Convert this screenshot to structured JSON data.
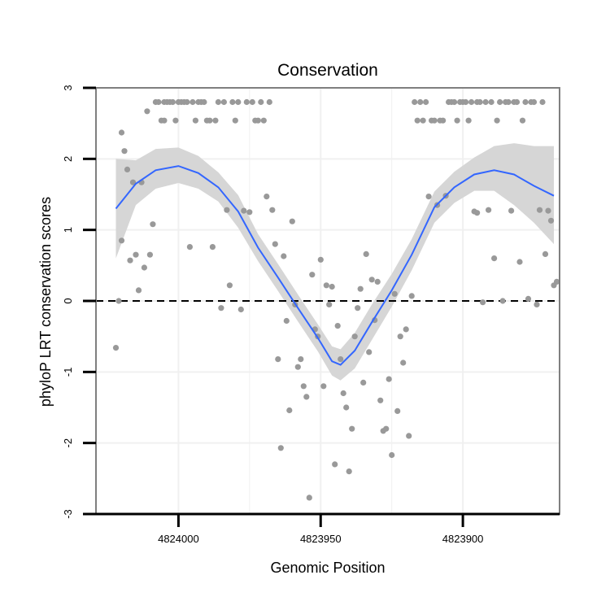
{
  "chart_data": {
    "type": "scatter",
    "title": "Conservation",
    "xlabel": "Genomic Position",
    "ylabel": "phyloP LRT conservation scores",
    "x_reversed": true,
    "xlim": [
      4824029,
      4823866
    ],
    "ylim": [
      -3,
      3
    ],
    "x_ticks": [
      {
        "value": 4824000,
        "label": "4824000"
      },
      {
        "value": 4823950,
        "label": "4823950"
      },
      {
        "value": 4823900,
        "label": "4823900"
      }
    ],
    "y_ticks": [
      {
        "value": -3,
        "label": "-3"
      },
      {
        "value": -2,
        "label": "-2"
      },
      {
        "value": -1,
        "label": "-1"
      },
      {
        "value": 0,
        "label": "0"
      },
      {
        "value": 1,
        "label": "1"
      },
      {
        "value": 2,
        "label": "2"
      },
      {
        "value": 3,
        "label": "3"
      }
    ],
    "reference_line": {
      "y": 0,
      "style": "dashed"
    },
    "grid": true,
    "points": [
      [
        4824022,
        -0.66
      ],
      [
        4824021,
        0.0
      ],
      [
        4824020,
        2.37
      ],
      [
        4824020,
        0.85
      ],
      [
        4824019,
        2.11
      ],
      [
        4824018,
        1.85
      ],
      [
        4824017,
        0.57
      ],
      [
        4824016,
        1.67
      ],
      [
        4824015,
        0.65
      ],
      [
        4824014,
        0.15
      ],
      [
        4824013,
        1.67
      ],
      [
        4824012,
        0.47
      ],
      [
        4824011,
        2.67
      ],
      [
        4824010,
        0.65
      ],
      [
        4824009,
        1.08
      ],
      [
        4824008,
        2.8
      ],
      [
        4824007,
        2.8
      ],
      [
        4824006,
        2.54
      ],
      [
        4824005,
        2.8
      ],
      [
        4824005,
        2.54
      ],
      [
        4824004,
        2.8
      ],
      [
        4824003,
        2.8
      ],
      [
        4824002,
        2.8
      ],
      [
        4824001,
        2.54
      ],
      [
        4824000,
        2.8
      ],
      [
        4823999,
        2.8
      ],
      [
        4823998,
        2.8
      ],
      [
        4823997,
        2.8
      ],
      [
        4823996,
        0.76
      ],
      [
        4823995,
        2.8
      ],
      [
        4823994,
        2.54
      ],
      [
        4823993,
        2.8
      ],
      [
        4823992,
        2.8
      ],
      [
        4823991,
        2.8
      ],
      [
        4823990,
        2.54
      ],
      [
        4823989,
        2.54
      ],
      [
        4823988,
        0.76
      ],
      [
        4823987,
        2.54
      ],
      [
        4823986,
        2.8
      ],
      [
        4823985,
        -0.1
      ],
      [
        4823984,
        2.8
      ],
      [
        4823983,
        1.28
      ],
      [
        4823982,
        0.22
      ],
      [
        4823981,
        2.8
      ],
      [
        4823980,
        2.54
      ],
      [
        4823979,
        2.8
      ],
      [
        4823978,
        -0.12
      ],
      [
        4823977,
        1.27
      ],
      [
        4823976,
        2.8
      ],
      [
        4823975,
        1.25
      ],
      [
        4823974,
        2.8
      ],
      [
        4823973,
        2.54
      ],
      [
        4823972,
        2.54
      ],
      [
        4823971,
        2.8
      ],
      [
        4823970,
        2.54
      ],
      [
        4823969,
        1.47
      ],
      [
        4823968,
        2.8
      ],
      [
        4823967,
        1.28
      ],
      [
        4823966,
        0.8
      ],
      [
        4823965,
        -0.82
      ],
      [
        4823964,
        -2.07
      ],
      [
        4823963,
        0.63
      ],
      [
        4823962,
        -0.28
      ],
      [
        4823961,
        -1.54
      ],
      [
        4823960,
        1.12
      ],
      [
        4823959,
        -0.05
      ],
      [
        4823958,
        -0.93
      ],
      [
        4823957,
        -0.82
      ],
      [
        4823956,
        -1.2
      ],
      [
        4823955,
        -1.35
      ],
      [
        4823954,
        -2.77
      ],
      [
        4823953,
        0.37
      ],
      [
        4823952,
        -0.4
      ],
      [
        4823951,
        -0.5
      ],
      [
        4823950,
        0.58
      ],
      [
        4823949,
        -1.2
      ],
      [
        4823948,
        0.22
      ],
      [
        4823947,
        -0.05
      ],
      [
        4823946,
        0.2
      ],
      [
        4823945,
        -2.3
      ],
      [
        4823944,
        -0.35
      ],
      [
        4823943,
        -0.82
      ],
      [
        4823942,
        -1.3
      ],
      [
        4823941,
        -1.5
      ],
      [
        4823940,
        -2.4
      ],
      [
        4823939,
        -1.8
      ],
      [
        4823938,
        -0.5
      ],
      [
        4823937,
        -0.1
      ],
      [
        4823936,
        0.17
      ],
      [
        4823935,
        -1.15
      ],
      [
        4823934,
        0.66
      ],
      [
        4823933,
        -0.72
      ],
      [
        4823932,
        0.3
      ],
      [
        4823931,
        -0.27
      ],
      [
        4823930,
        0.27
      ],
      [
        4823929,
        -1.4
      ],
      [
        4823928,
        -1.83
      ],
      [
        4823927,
        -1.8
      ],
      [
        4823926,
        -1.1
      ],
      [
        4823925,
        -2.17
      ],
      [
        4823924,
        0.1
      ],
      [
        4823923,
        -1.55
      ],
      [
        4823922,
        -0.5
      ],
      [
        4823921,
        -0.87
      ],
      [
        4823920,
        -0.4
      ],
      [
        4823919,
        -1.9
      ],
      [
        4823918,
        0.07
      ],
      [
        4823917,
        2.8
      ],
      [
        4823916,
        2.54
      ],
      [
        4823915,
        2.8
      ],
      [
        4823914,
        2.54
      ],
      [
        4823913,
        2.8
      ],
      [
        4823912,
        1.47
      ],
      [
        4823911,
        2.54
      ],
      [
        4823910,
        2.54
      ],
      [
        4823909,
        1.35
      ],
      [
        4823908,
        2.54
      ],
      [
        4823907,
        2.54
      ],
      [
        4823906,
        1.48
      ],
      [
        4823905,
        2.8
      ],
      [
        4823904,
        2.8
      ],
      [
        4823903,
        2.8
      ],
      [
        4823902,
        2.54
      ],
      [
        4823901,
        2.8
      ],
      [
        4823900,
        2.8
      ],
      [
        4823899,
        2.8
      ],
      [
        4823898,
        2.54
      ],
      [
        4823897,
        2.8
      ],
      [
        4823896,
        1.26
      ],
      [
        4823895,
        2.8
      ],
      [
        4823895,
        1.24
      ],
      [
        4823894,
        2.8
      ],
      [
        4823893,
        -0.02
      ],
      [
        4823892,
        2.8
      ],
      [
        4823891,
        1.28
      ],
      [
        4823890,
        2.8
      ],
      [
        4823889,
        0.6
      ],
      [
        4823888,
        2.54
      ],
      [
        4823887,
        2.8
      ],
      [
        4823886,
        0.0
      ],
      [
        4823885,
        2.8
      ],
      [
        4823884,
        2.8
      ],
      [
        4823883,
        1.27
      ],
      [
        4823882,
        2.8
      ],
      [
        4823881,
        2.8
      ],
      [
        4823880,
        0.55
      ],
      [
        4823879,
        2.54
      ],
      [
        4823878,
        2.8
      ],
      [
        4823877,
        0.03
      ],
      [
        4823876,
        2.8
      ],
      [
        4823875,
        2.8
      ],
      [
        4823874,
        -0.05
      ],
      [
        4823873,
        1.28
      ],
      [
        4823872,
        2.8
      ],
      [
        4823871,
        0.66
      ],
      [
        4823870,
        1.27
      ],
      [
        4823869,
        1.13
      ],
      [
        4823868,
        0.22
      ],
      [
        4823867,
        0.27
      ]
    ],
    "smooth_line": {
      "color": "#3366ff",
      "x": [
        4824022,
        4824015,
        4824008,
        4824000,
        4823993,
        4823986,
        4823979,
        4823972,
        4823965,
        4823958,
        4823951,
        4823946,
        4823943,
        4823938,
        4823932,
        4823925,
        4823918,
        4823910,
        4823903,
        4823896,
        4823889,
        4823882,
        4823875,
        4823868
      ],
      "y": [
        1.3,
        1.65,
        1.84,
        1.9,
        1.8,
        1.6,
        1.26,
        0.75,
        0.33,
        -0.1,
        -0.52,
        -0.85,
        -0.9,
        -0.7,
        -0.3,
        0.15,
        0.65,
        1.32,
        1.6,
        1.78,
        1.84,
        1.78,
        1.62,
        1.48
      ],
      "ci_lower": [
        0.6,
        1.35,
        1.58,
        1.66,
        1.58,
        1.4,
        1.03,
        0.56,
        0.14,
        -0.29,
        -0.71,
        -1.05,
        -1.12,
        -0.95,
        -0.55,
        -0.08,
        0.43,
        1.1,
        1.38,
        1.55,
        1.55,
        1.35,
        1.1,
        0.8
      ],
      "ci_upper": [
        2.0,
        1.98,
        2.14,
        2.16,
        2.04,
        1.81,
        1.49,
        0.94,
        0.52,
        0.09,
        -0.33,
        -0.64,
        -0.68,
        -0.45,
        -0.05,
        0.38,
        0.87,
        1.54,
        1.82,
        2.02,
        2.18,
        2.22,
        2.18,
        2.18
      ]
    },
    "colors": {
      "points": "#999999",
      "smooth": "#3366ff",
      "ribbon": "#d6d6d6",
      "panel_border": "#7f7f7f",
      "grid": "#f0f0f0"
    }
  }
}
